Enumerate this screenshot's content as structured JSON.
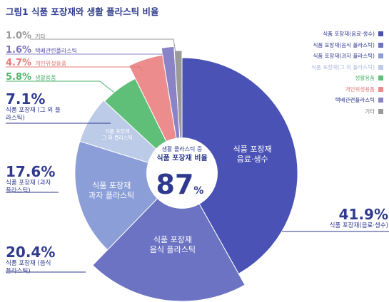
{
  "chart_data": {
    "type": "pie",
    "title": "그림1  식품 포장재와 생활 플라스틱 비율",
    "center_text": {
      "line1": "생활 플라스틱 중",
      "line2": "식품 포장재 비율",
      "value": "87",
      "unit": "%"
    },
    "slices": [
      {
        "label": "식품 포장재(음료·생수)",
        "value": 41.9,
        "color": "#4a52b5",
        "pie_label": "식품 포장재 음료·생수",
        "callout_pct": "41.9%",
        "callout_label": "식품 포장재(음료·생수)"
      },
      {
        "label": "식품 포장재(음식 플라스틱)",
        "value": 20.4,
        "color": "#6c73c2",
        "pie_label": "식품 포장재 음식 플라스틱",
        "callout_pct": "20.4%",
        "callout_label": "식품 포장재 (음식 플라스틱)"
      },
      {
        "label": "식품 포장재(과자 플라스틱)",
        "value": 17.6,
        "color": "#8b9ed8",
        "pie_label": "식품 포장재 과자 플라스틱",
        "callout_pct": "17.6%",
        "callout_label": "식품 포장재 (과자 플라스틱)"
      },
      {
        "label": "식품 포장재(그 외 플라스틱)",
        "value": 7.1,
        "color": "#bccbe8",
        "pie_label": "식품 포장재 그 외 플라스틱",
        "callout_pct": "7.1%",
        "callout_label": "식품 포장재 (그 외 플라스틱)"
      },
      {
        "label": "생활용품",
        "value": 5.8,
        "color": "#5fbf78",
        "callout_pct": "5.8%",
        "callout_label": "생활용품"
      },
      {
        "label": "개인위생용품",
        "value": 4.7,
        "color": "#ec8c8c",
        "callout_pct": "4.7%",
        "callout_label": "개인위생용품"
      },
      {
        "label": "택배관련플라스틱",
        "value": 1.6,
        "color": "#8a84c7",
        "callout_pct": "1.6%",
        "callout_label": "택배관련플라스틱"
      },
      {
        "label": "기타",
        "value": 1.0,
        "color": "#9a9a9a",
        "callout_pct": "1.0%",
        "callout_label": "기타"
      }
    ],
    "legend_position": "top-right"
  }
}
